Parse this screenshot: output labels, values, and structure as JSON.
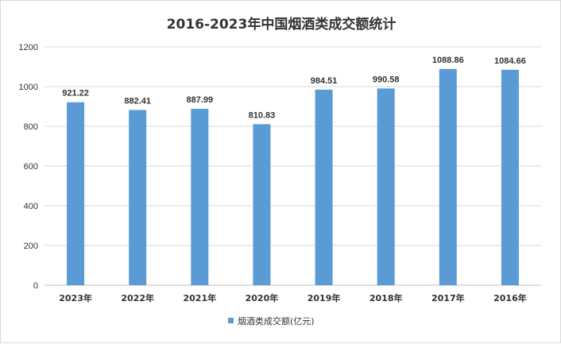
{
  "chart_data": {
    "type": "bar",
    "title": "2016-2023年中国烟酒类成交额统计",
    "categories": [
      "2023年",
      "2022年",
      "2021年",
      "2020年",
      "2019年",
      "2018年",
      "2017年",
      "2016年"
    ],
    "series": [
      {
        "name": "烟酒类成交额(亿元)",
        "values": [
          921.22,
          882.41,
          887.99,
          810.83,
          984.51,
          990.58,
          1088.86,
          1084.66
        ],
        "labels": [
          "921.22",
          "882.41",
          "887.99",
          "810.83",
          "984.51",
          "990.58",
          "1088.86",
          "1084.66"
        ],
        "color": "#5b9bd5"
      }
    ],
    "ylim": [
      0,
      1200
    ],
    "yticks": [
      0,
      200,
      400,
      600,
      800,
      1000,
      1200
    ],
    "grid": true,
    "legend_position": "bottom"
  }
}
